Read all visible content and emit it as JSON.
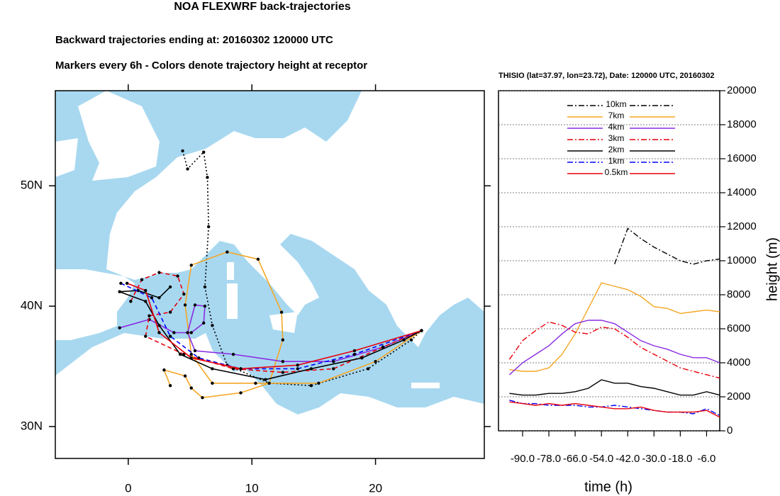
{
  "chart_data": [
    {
      "type": "map",
      "title": "NOA FLEXWRF back-trajectories",
      "subtitle": "Backward trajectories ending at: 20160302  120000 UTC",
      "note": "Markers every 6h - Colors denote trajectory height at receptor",
      "xlim": [
        -5.9,
        28.8
      ],
      "ylim": [
        27.35,
        57.9
      ],
      "xticks": [
        0,
        10,
        20
      ],
      "yticks": [
        {
          "value": 30,
          "label": "30N"
        },
        {
          "value": 40,
          "label": "40N"
        },
        {
          "value": 50,
          "label": "50N"
        }
      ],
      "sea_color": "#a8d8f0",
      "land_color": "#ffffff",
      "series": [
        {
          "color": "#000000",
          "dash": "dot",
          "lon": [
            4.4,
            4.8,
            6.1,
            6.4,
            6.5,
            6.2,
            6.8,
            8.0,
            11.4,
            14.8,
            19.4,
            22.9,
            23.72
          ],
          "lat": [
            52.9,
            51.4,
            52.8,
            50.7,
            46.6,
            41.6,
            38.4,
            35.1,
            33.6,
            33.4,
            34.8,
            37.2,
            37.97
          ]
        },
        {
          "color": "#f5a623",
          "dash": "solid",
          "lon": [
            3.4,
            2.9,
            4.6,
            5.1,
            6.0,
            9.1,
            11.4,
            12.5,
            12.4,
            10.5,
            8.0,
            5.1,
            4.6,
            5.1,
            6.8,
            10.3,
            15.4,
            20.0,
            23.72
          ],
          "lat": [
            33.4,
            34.7,
            34.2,
            33.2,
            32.4,
            32.8,
            33.6,
            37.2,
            39.5,
            43.9,
            44.5,
            43.4,
            40.1,
            36.0,
            33.6,
            33.6,
            33.6,
            35.4,
            37.97
          ]
        },
        {
          "color": "#8a2be2",
          "dash": "solid",
          "lon": [
            -0.7,
            1.7,
            3.7,
            5.1,
            6.1,
            6.2,
            5.4,
            4.8,
            5.4,
            8.5,
            12.5,
            16.6,
            20.6,
            23.72
          ],
          "lat": [
            38.2,
            38.9,
            37.8,
            37.8,
            38.6,
            40.0,
            40.1,
            37.8,
            36.3,
            36.0,
            35.4,
            35.4,
            36.6,
            37.97
          ]
        },
        {
          "color": "#e8000b",
          "dash": "dash",
          "lon": [
            0.2,
            1.1,
            2.5,
            4.0,
            4.5,
            3.4,
            1.7,
            1.4,
            4.5,
            8.5,
            12.5,
            16.6,
            20.6,
            23.72
          ],
          "lat": [
            40.4,
            42.2,
            42.8,
            42.5,
            41.0,
            39.5,
            39.2,
            37.5,
            36.0,
            34.8,
            34.5,
            34.8,
            36.6,
            37.97
          ]
        },
        {
          "color": "#000000",
          "dash": "solid",
          "lon": [
            3.4,
            2.5,
            0.8,
            -0.7,
            1.4,
            2.5,
            4.2,
            6.8,
            11.1,
            14.8,
            18.9,
            22.3,
            23.72
          ],
          "lat": [
            41.6,
            40.7,
            41.3,
            41.2,
            40.4,
            38.4,
            36.0,
            34.8,
            33.9,
            34.8,
            35.7,
            37.2,
            37.97
          ]
        },
        {
          "color": "#0000ff",
          "dash": "dash",
          "lon": [
            -0.6,
            1.9,
            3.4,
            5.7,
            9.1,
            13.7,
            18.3,
            23.72
          ],
          "lat": [
            41.9,
            40.7,
            37.5,
            35.7,
            34.8,
            34.8,
            36.0,
            37.97
          ]
        },
        {
          "color": "#e8000b",
          "dash": "solid",
          "lon": [
            -0.1,
            1.4,
            2.5,
            5.1,
            9.1,
            13.7,
            18.3,
            23.72
          ],
          "lat": [
            41.9,
            41.3,
            37.8,
            35.7,
            34.8,
            35.1,
            36.3,
            37.97
          ]
        }
      ]
    },
    {
      "type": "line",
      "title": "THISIO (lat=37.97,  lon=23.72), Date: 120000 UTC, 20160302",
      "xlabel": "time (h)",
      "ylabel": "height (m)",
      "x": [
        -96,
        -90,
        -84,
        -78,
        -72,
        -66,
        -60,
        -54,
        -48,
        -42,
        -36,
        -30,
        -24,
        -18,
        -12,
        -6,
        0
      ],
      "xlim": [
        -101,
        0
      ],
      "ylim": [
        0,
        20000
      ],
      "xticks": [
        {
          "value": -90,
          "label": "-90.0"
        },
        {
          "value": -78,
          "label": "-78.0"
        },
        {
          "value": -66,
          "label": "-66.0"
        },
        {
          "value": -54,
          "label": "-54.0"
        },
        {
          "value": -42,
          "label": "-42.0"
        },
        {
          "value": -30,
          "label": "-30.0"
        },
        {
          "value": -18,
          "label": "-18.0"
        },
        {
          "value": -6,
          "label": "-6.0"
        }
      ],
      "yticks": [
        0,
        2000,
        4000,
        6000,
        8000,
        10000,
        12000,
        14000,
        16000,
        18000,
        20000
      ],
      "grid": true,
      "series": [
        {
          "name": "10km",
          "color": "#000000",
          "dash": "dashdot",
          "values": [
            null,
            null,
            null,
            null,
            null,
            null,
            null,
            null,
            9800,
            11900,
            11300,
            10800,
            10400,
            10000,
            9800,
            10000,
            10100
          ]
        },
        {
          "name": "7km",
          "color": "#f5a623",
          "dash": "solid",
          "values": [
            3600,
            3500,
            3500,
            3700,
            4500,
            5700,
            7200,
            8700,
            8500,
            8300,
            7900,
            7300,
            7200,
            6900,
            7000,
            7100,
            7000
          ]
        },
        {
          "name": "4km",
          "color": "#8a2be2",
          "dash": "solid",
          "values": [
            3300,
            4000,
            4500,
            5000,
            5700,
            6300,
            6500,
            6500,
            6300,
            5800,
            5300,
            5000,
            4800,
            4500,
            4300,
            4300,
            4000
          ]
        },
        {
          "name": "3km",
          "color": "#e8000b",
          "dash": "dashdot",
          "values": [
            4200,
            5300,
            5900,
            6400,
            6200,
            5800,
            5700,
            6100,
            6000,
            5500,
            4900,
            4500,
            4100,
            3700,
            3500,
            3300,
            3100
          ]
        },
        {
          "name": "2km",
          "color": "#000000",
          "dash": "solid",
          "values": [
            2200,
            2100,
            2100,
            2200,
            2200,
            2300,
            2500,
            3000,
            2800,
            2800,
            2600,
            2500,
            2300,
            2100,
            2100,
            2300,
            2100
          ]
        },
        {
          "name": "1km",
          "color": "#0000ff",
          "dash": "dashdot",
          "values": [
            1800,
            1600,
            1600,
            1500,
            1500,
            1500,
            1400,
            1400,
            1500,
            1400,
            1300,
            1200,
            1100,
            1100,
            1000,
            1300,
            900
          ]
        },
        {
          "name": "0.5km",
          "color": "#e8000b",
          "dash": "solid",
          "values": [
            1700,
            1600,
            1500,
            1600,
            1500,
            1600,
            1500,
            1400,
            1300,
            1300,
            1400,
            1200,
            1100,
            1100,
            1100,
            1200,
            800
          ]
        }
      ]
    }
  ]
}
